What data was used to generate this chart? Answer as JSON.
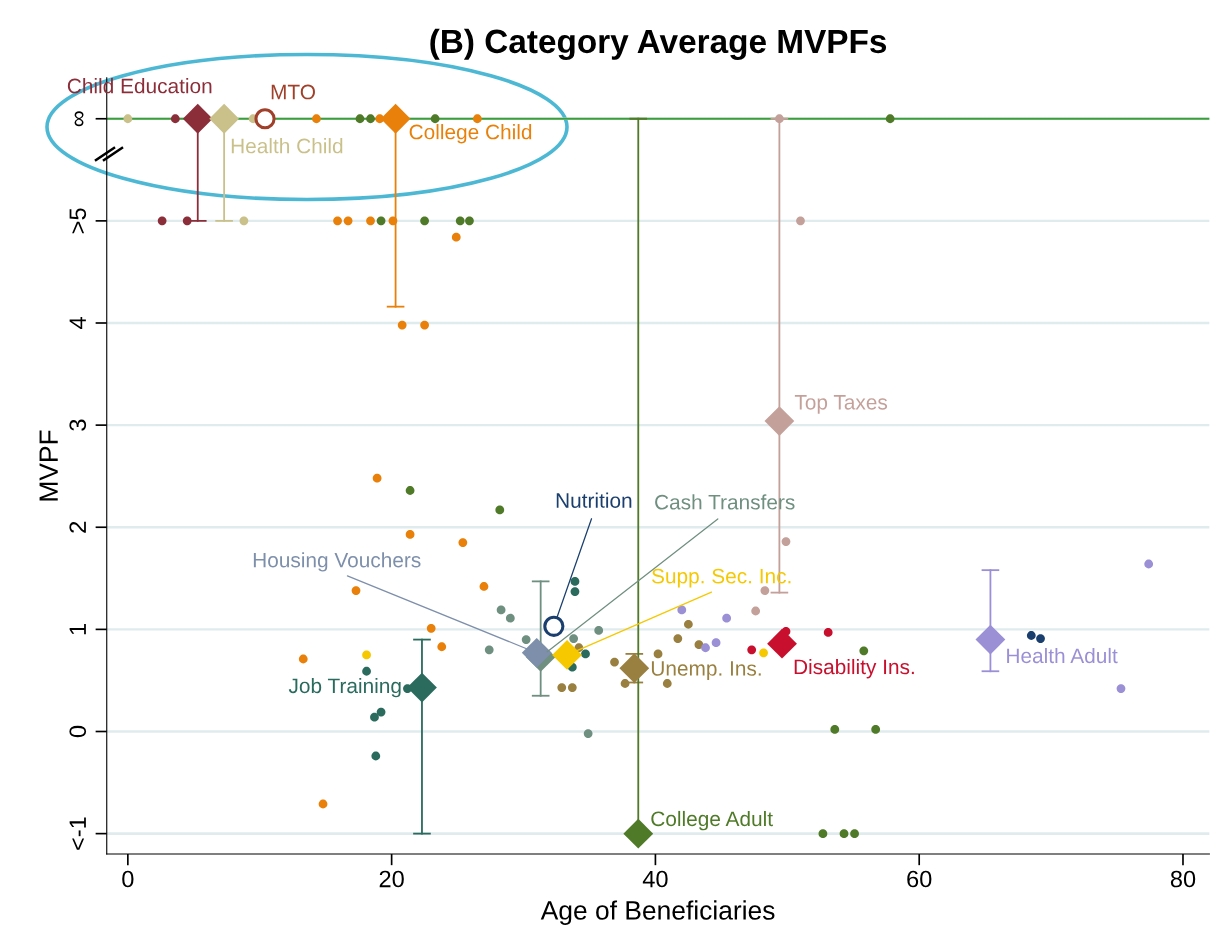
{
  "chart_data": {
    "type": "scatter",
    "title": "(B) Category Average MVPFs",
    "xlabel": "Age of Beneficiaries",
    "ylabel": "MVPF",
    "xlim": [
      -1.6,
      82
    ],
    "xticks": [
      0,
      20,
      40,
      60,
      80
    ],
    "ylim": [
      -1.2,
      6.4
    ],
    "yticks": [
      {
        "value": -1,
        "label": "<-1"
      },
      0,
      1,
      2,
      3,
      4,
      {
        "value": 5,
        "label": ">5"
      },
      {
        "value": 6,
        "label": "∞"
      }
    ],
    "grid": "y",
    "legend": false,
    "marker": "circle",
    "ref_lines": [
      {
        "axis": "y",
        "value": 6,
        "color": "#3a9e3a"
      }
    ],
    "series": [
      {
        "color": "#8b2e3a",
        "x": [
          3.6,
          2.6,
          4.5
        ],
        "values": [
          6,
          5,
          5
        ]
      },
      {
        "color": "#c9c08a",
        "x": [
          0.0,
          9.5,
          8.8
        ],
        "values": [
          6,
          6,
          5
        ]
      },
      {
        "color": "#e8800a",
        "x": [
          14.3,
          19.1,
          26.5,
          15.9,
          16.7,
          18.4,
          20.1,
          24.9,
          20.8,
          22.5,
          18.9,
          21.4,
          25.4,
          17.3,
          27.0,
          23.0,
          23.8,
          13.3,
          14.8
        ],
        "values": [
          6,
          6,
          6,
          5,
          5,
          5,
          5,
          4.84,
          3.98,
          3.98,
          2.48,
          1.93,
          1.85,
          1.38,
          1.42,
          1.01,
          0.83,
          0.71,
          -0.71
        ]
      },
      {
        "color": "#4f7a28",
        "x": [
          17.6,
          18.4,
          23.3,
          57.8,
          19.2,
          22.5,
          25.2,
          25.9,
          21.4,
          28.2,
          55.8,
          53.6,
          56.7,
          52.7,
          54.3,
          55.1
        ],
        "values": [
          6,
          6,
          6,
          6,
          5,
          5,
          5,
          5,
          2.36,
          2.17,
          0.79,
          0.02,
          0.02,
          -1,
          -1,
          -1
        ]
      },
      {
        "color": "#c4a09a",
        "x": [
          49.4,
          51.0,
          49.9,
          48.3,
          47.6
        ],
        "values": [
          6,
          5,
          1.86,
          1.38,
          1.18
        ]
      },
      {
        "color": "#2a6b5e",
        "x": [
          18.1,
          21.2,
          19.2,
          18.7,
          18.8,
          33.9,
          33.9,
          34.7,
          33.7
        ],
        "values": [
          0.59,
          0.42,
          0.19,
          0.14,
          -0.24,
          1.47,
          1.37,
          0.76,
          0.63
        ]
      },
      {
        "color": "#6f8f80",
        "x": [
          28.3,
          29.0,
          27.4,
          30.2,
          33.8,
          35.7,
          34.9
        ],
        "values": [
          1.19,
          1.11,
          0.8,
          0.9,
          0.91,
          0.99,
          -0.02
        ]
      },
      {
        "color": "#f5c800",
        "x": [
          18.1,
          48.2
        ],
        "values": [
          0.75,
          0.77
        ]
      },
      {
        "color": "#9a8040",
        "x": [
          34.2,
          32.9,
          33.7,
          36.9,
          37.7,
          40.2,
          42.5,
          41.7,
          43.3,
          40.9
        ],
        "values": [
          0.82,
          0.43,
          0.43,
          0.68,
          0.47,
          0.76,
          1.05,
          0.91,
          0.85,
          0.47
        ]
      },
      {
        "color": "#9b8fd6",
        "x": [
          42.0,
          45.4,
          43.8,
          44.6,
          77.4,
          75.3
        ],
        "values": [
          1.19,
          1.11,
          0.82,
          0.87,
          1.64,
          0.42
        ]
      },
      {
        "color": "#c8102e",
        "x": [
          47.3,
          49.9,
          53.1
        ],
        "values": [
          0.8,
          0.98,
          0.97
        ]
      },
      {
        "color": "#1a3f6e",
        "x": [
          68.5,
          69.2
        ],
        "values": [
          0.94,
          0.91
        ]
      },
      {
        "name": "Child Education",
        "color": "#8b2e3a",
        "marker": "diamond",
        "x": [
          5.3
        ],
        "values": [
          6
        ],
        "errors": [
          [
            5,
            6
          ]
        ]
      },
      {
        "name": "Health Child",
        "color": "#c9c08a",
        "marker": "diamond",
        "x": [
          7.3
        ],
        "values": [
          6
        ],
        "errors": [
          [
            5,
            6
          ]
        ]
      },
      {
        "name": "MTO",
        "color": "#a0402a",
        "marker": "circle",
        "x": [
          10.4
        ],
        "values": [
          6
        ]
      },
      {
        "name": "College Child",
        "color": "#e8800a",
        "marker": "diamond",
        "x": [
          20.3
        ],
        "values": [
          6
        ],
        "errors": [
          [
            4.16,
            6
          ]
        ]
      },
      {
        "name": "Top Taxes",
        "color": "#c4a09a",
        "marker": "diamond",
        "x": [
          49.4
        ],
        "values": [
          3.04
        ],
        "errors": [
          [
            1.36,
            6
          ]
        ]
      },
      {
        "name": "Nutrition",
        "color": "#1a3f6e",
        "marker": "circle",
        "x": [
          32.3
        ],
        "values": [
          1.03
        ]
      },
      {
        "name": "Cash Transfers",
        "color": "#6f8f80",
        "marker": "diamond",
        "x": [
          31.3
        ],
        "values": [
          0.73
        ],
        "errors": [
          [
            0.35,
            1.47
          ]
        ]
      },
      {
        "name": "Housing Vouchers",
        "color": "#7d8fab",
        "marker": "diamond",
        "x": [
          31.0
        ],
        "values": [
          0.77
        ]
      },
      {
        "name": "Supp. Sec. Inc.",
        "color": "#f5c800",
        "marker": "diamond",
        "x": [
          33.3
        ],
        "values": [
          0.75
        ]
      },
      {
        "name": "Job Training",
        "color": "#2a6b5e",
        "marker": "diamond",
        "x": [
          22.3
        ],
        "values": [
          0.43
        ],
        "errors": [
          [
            -1,
            0.9
          ]
        ]
      },
      {
        "name": "Unemp. Ins.",
        "color": "#9a8040",
        "marker": "diamond",
        "x": [
          38.4
        ],
        "values": [
          0.62
        ],
        "errors": [
          [
            0.48,
            0.76
          ]
        ]
      },
      {
        "name": "College Adult",
        "color": "#4f7a28",
        "marker": "diamond",
        "x": [
          38.7
        ],
        "values": [
          -1
        ],
        "errors": [
          [
            -1,
            6
          ]
        ]
      },
      {
        "name": "Disability Ins.",
        "color": "#c8102e",
        "marker": "diamond",
        "x": [
          49.6
        ],
        "values": [
          0.86
        ]
      },
      {
        "name": "Health Adult",
        "color": "#9b8fd6",
        "marker": "diamond",
        "x": [
          65.4
        ],
        "values": [
          0.9
        ],
        "errors": [
          [
            0.59,
            1.58
          ]
        ]
      }
    ]
  }
}
